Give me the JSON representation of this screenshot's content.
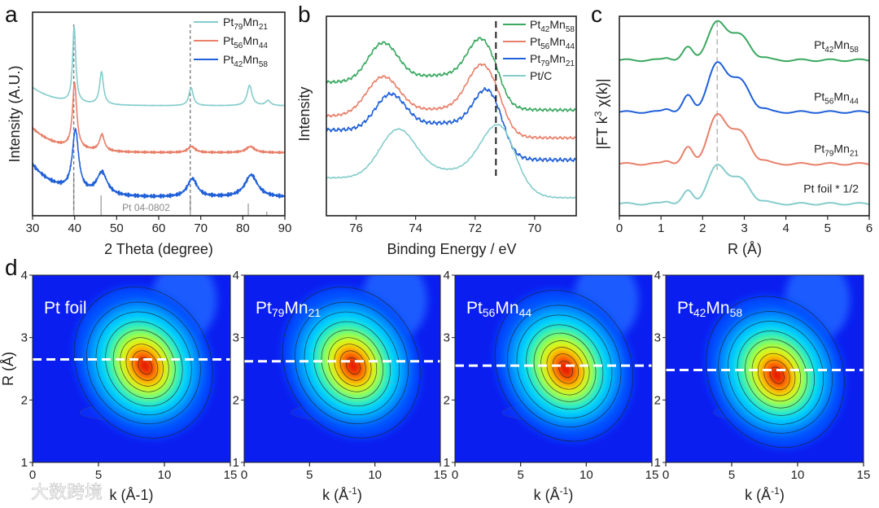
{
  "panel_letters": {
    "a": "a",
    "b": "b",
    "c": "c",
    "d": "d"
  },
  "watermark": "大数跨境",
  "chart_data": [
    {
      "id": "a",
      "type": "line",
      "xlabel": "2 Theta (degree)",
      "ylabel": "Intensity (A.U.)",
      "xlim": [
        30,
        90
      ],
      "ylim": [
        0,
        10
      ],
      "xticks": [
        "30",
        "40",
        "50",
        "60",
        "70",
        "80",
        "90"
      ],
      "legend_position": "top-right",
      "reference_label": "Pt 04-0802",
      "reference_lines": [
        {
          "x": 39.8,
          "h": 2.0
        },
        {
          "x": 46.3,
          "h": 1.0
        },
        {
          "x": 67.5,
          "h": 1.0
        },
        {
          "x": 81.3,
          "h": 0.6
        },
        {
          "x": 85.7,
          "h": 0.2
        }
      ],
      "dashed_lines": [
        39.8,
        67.5
      ],
      "series": [
        {
          "name": "Pt79Mn21",
          "parts": [
            "Pt",
            "79",
            "Mn",
            "21"
          ],
          "color": "#86cccc",
          "offset": 5.4,
          "decay": 0.9,
          "noise": 0.01,
          "peaks": [
            [
              39.9,
              3.7,
              0.45
            ],
            [
              46.4,
              1.6,
              0.55
            ],
            [
              67.7,
              0.9,
              0.6
            ],
            [
              81.6,
              1.0,
              0.7
            ],
            [
              86.0,
              0.25,
              0.7
            ]
          ]
        },
        {
          "name": "Pt56Mn44",
          "parts": [
            "Pt",
            "56",
            "Mn",
            "44"
          ],
          "color": "#e8806a",
          "offset": 3.1,
          "decay": 1.2,
          "noise": 0.06,
          "peaks": [
            [
              40.0,
              3.2,
              0.6
            ],
            [
              46.5,
              0.8,
              0.7
            ],
            [
              67.8,
              0.3,
              1.0
            ],
            [
              81.8,
              0.3,
              1.2
            ]
          ]
        },
        {
          "name": "Pt42Mn58",
          "parts": [
            "Pt",
            "42",
            "Mn",
            "58"
          ],
          "color": "#2060d8",
          "offset": 0.9,
          "decay": 1.6,
          "noise": 0.1,
          "peaks": [
            [
              40.2,
              3.0,
              0.9
            ],
            [
              46.5,
              1.1,
              1.5
            ],
            [
              68.0,
              0.9,
              1.4
            ],
            [
              82.0,
              1.1,
              1.8
            ]
          ]
        }
      ]
    },
    {
      "id": "b",
      "type": "line",
      "xlabel": "Binding Energy / eV",
      "ylabel": "Intensity",
      "xlim": [
        77,
        68.6
      ],
      "ylim": [
        0,
        10
      ],
      "xticks": [
        "76",
        "74",
        "72",
        "70"
      ],
      "legend_position": "top-right",
      "dashed_line": 71.3,
      "series": [
        {
          "name": "Pt42Mn58",
          "parts": [
            "Pt",
            "42",
            "Mn",
            "58"
          ],
          "color": "#3aa860",
          "offset": 5.3,
          "step": 1.4,
          "step_center": 71.1,
          "noise": 0.08,
          "peaks": [
            [
              75.1,
              1.9,
              0.5
            ],
            [
              71.8,
              2.0,
              0.45
            ]
          ]
        },
        {
          "name": "Pt56Mn44",
          "parts": [
            "Pt",
            "56",
            "Mn",
            "44"
          ],
          "color": "#e8806a",
          "offset": 3.9,
          "step": 1.1,
          "step_center": 71.0,
          "noise": 0.07,
          "peaks": [
            [
              75.1,
              1.9,
              0.55
            ],
            [
              71.75,
              2.4,
              0.5
            ]
          ]
        },
        {
          "name": "Pt79Mn21",
          "parts": [
            "Pt",
            "79",
            "Mn",
            "21"
          ],
          "color": "#2060d8",
          "offset": 2.8,
          "step": 1.5,
          "step_center": 71.0,
          "noise": 0.1,
          "peaks": [
            [
              74.85,
              1.7,
              0.5
            ],
            [
              71.6,
              1.9,
              0.45
            ]
          ]
        },
        {
          "name": "Pt/C",
          "parts": [
            "Pt/C",
            "",
            "",
            ""
          ],
          "color": "#86cccc",
          "offset": 0.9,
          "step": 1.0,
          "step_center": 70.7,
          "noise": 0.03,
          "peaks": [
            [
              74.6,
              2.3,
              0.6
            ],
            [
              71.2,
              2.6,
              0.6
            ]
          ]
        }
      ]
    },
    {
      "id": "c",
      "type": "line",
      "xlabel": "R (Å)",
      "ylabel_parts": [
        "|FT k",
        "3",
        " χ(k)|"
      ],
      "xlim": [
        0,
        6
      ],
      "ylim": [
        0,
        10
      ],
      "xticks": [
        "0",
        "1",
        "2",
        "3",
        "4",
        "5",
        "6"
      ],
      "dashed_line": 2.35,
      "series": [
        {
          "name": "Pt42Mn58",
          "parts": [
            "Pt",
            "42",
            "Mn",
            "58"
          ],
          "color": "#3aa860",
          "offset": 7.8,
          "scale": 1.8,
          "label_R": 5.0
        },
        {
          "name": "Pt56Mn44",
          "parts": [
            "Pt",
            "56",
            "Mn",
            "44"
          ],
          "color": "#2060d8",
          "offset": 5.2,
          "scale": 2.3,
          "label_R": 5.0
        },
        {
          "name": "Pt79Mn21",
          "parts": [
            "Pt",
            "79",
            "Mn",
            "21"
          ],
          "color": "#e8806a",
          "offset": 2.6,
          "scale": 2.3,
          "label_R": 5.0
        },
        {
          "name": "Pt foil * 1/2",
          "parts": [
            "Pt foil * 1/2",
            "",
            "",
            ""
          ],
          "color": "#86cccc",
          "offset": 0.6,
          "scale": 1.8,
          "label_R": 5.0
        }
      ],
      "peak_shape": [
        [
          1.15,
          0.08,
          0.1
        ],
        [
          1.65,
          0.35,
          0.12
        ],
        [
          2.34,
          1.0,
          0.22
        ],
        [
          2.88,
          0.68,
          0.25
        ],
        [
          3.5,
          0.05,
          0.1
        ]
      ]
    },
    {
      "id": "d",
      "type": "heatmap",
      "xlabel": "k (Å-1)",
      "xlabel_parts": [
        "k (Å",
        "-1",
        ")"
      ],
      "ylabel": "R (Å)",
      "xlim": [
        0,
        15
      ],
      "ylim": [
        1,
        4
      ],
      "xticks": [
        "0",
        "5",
        "10",
        "15"
      ],
      "yticks": [
        "1",
        "2",
        "3",
        "4"
      ],
      "maps": [
        {
          "name": "Pt foil",
          "parts": [
            "Pt foil",
            "",
            "",
            ""
          ],
          "peak_k": 8.4,
          "peak_R": 2.6,
          "dashed_R": 2.65
        },
        {
          "name": "Pt79Mn21",
          "parts": [
            "Pt",
            "79",
            "Mn",
            "21"
          ],
          "peak_k": 8.2,
          "peak_R": 2.6,
          "dashed_R": 2.62
        },
        {
          "name": "Pt56Mn44",
          "parts": [
            "Pt",
            "56",
            "Mn",
            "44"
          ],
          "peak_k": 8.3,
          "peak_R": 2.55,
          "dashed_R": 2.55
        },
        {
          "name": "Pt42Mn58",
          "parts": [
            "Pt",
            "42",
            "Mn",
            "58"
          ],
          "peak_k": 8.3,
          "peak_R": 2.45,
          "dashed_R": 2.48
        }
      ]
    }
  ]
}
